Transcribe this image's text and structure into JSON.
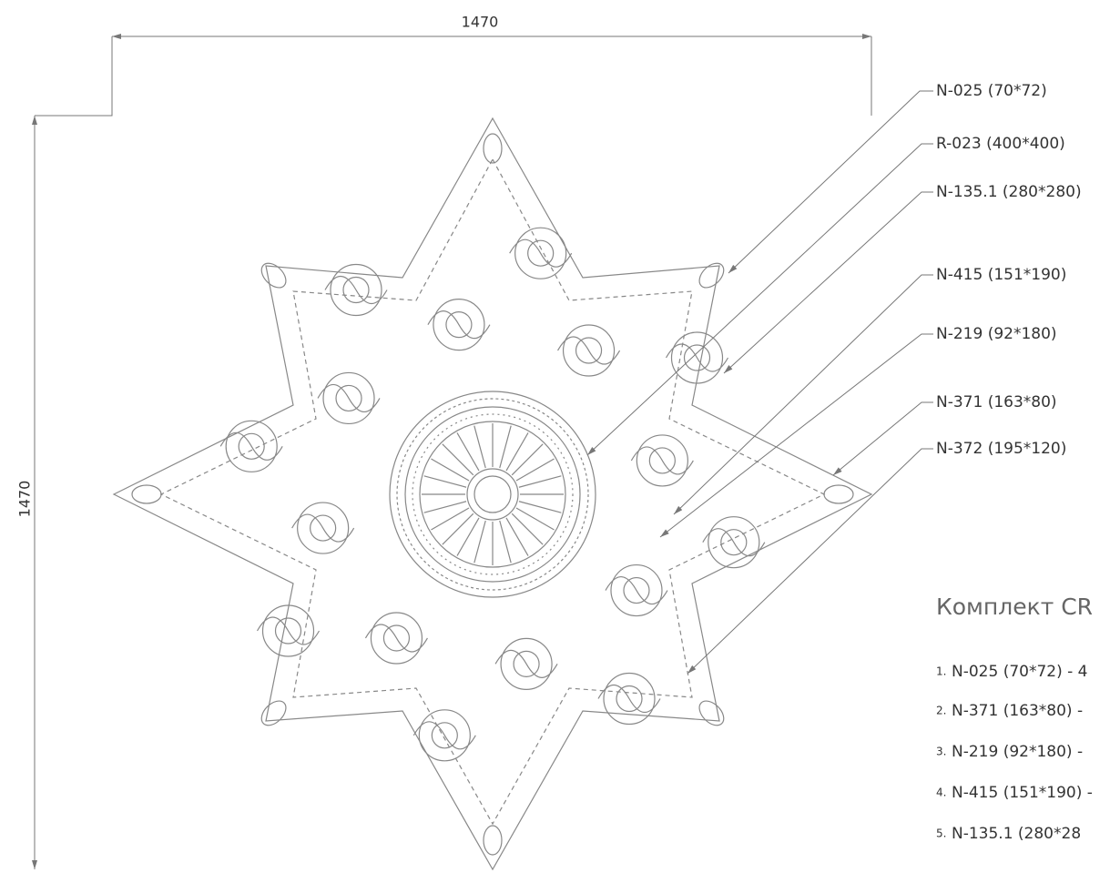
{
  "dimensions": {
    "width": "1470",
    "height": "1470"
  },
  "callouts": [
    "N-025 (70*72)",
    "R-023 (400*400)",
    "N-135.1 (280*280)",
    "N-415 (151*190)",
    "N-219 (92*180)",
    "N-371 (163*80)",
    "N-372 (195*120)"
  ],
  "kit": {
    "title": "Комплект CR",
    "items": [
      {
        "num": "1.",
        "text": "N-025 (70*72) - 4"
      },
      {
        "num": "2.",
        "text": "N-371 (163*80) -"
      },
      {
        "num": "3.",
        "text": "N-219 (92*180) -"
      },
      {
        "num": "4.",
        "text": "N-415 (151*190) -"
      },
      {
        "num": "5.",
        "text": "N-135.1 (280*28"
      }
    ]
  }
}
